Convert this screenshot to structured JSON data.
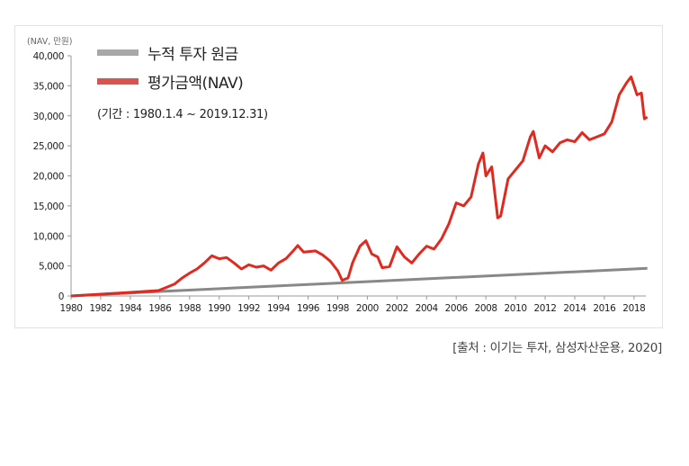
{
  "chart_data": {
    "type": "line",
    "ylabel": "(NAV, 만원)",
    "ylim": [
      0,
      40000
    ],
    "xlim": [
      1980,
      2018.9
    ],
    "yticks": [
      "0",
      "5,000",
      "10,000",
      "15,000",
      "20,000",
      "25,000",
      "30,000",
      "35,000",
      "40,000"
    ],
    "ytick_values": [
      0,
      5000,
      10000,
      15000,
      20000,
      25000,
      30000,
      35000,
      40000
    ],
    "xticks": [
      "1980",
      "1982",
      "1984",
      "1986",
      "1988",
      "1990",
      "1992",
      "1994",
      "1996",
      "1998",
      "2000",
      "2002",
      "2004",
      "2006",
      "2008",
      "2010",
      "2012",
      "2014",
      "2016",
      "2018"
    ],
    "period_note": "(기간 : 1980.1.4 ~ 2019.12.31)",
    "legend_placement": "top-left",
    "grid": false,
    "series": [
      {
        "name": "누적 투자 원금",
        "color": "#999999",
        "x": [
          1980,
          1986,
          2018.9
        ],
        "y": [
          0,
          750,
          4600
        ]
      },
      {
        "name": "평가금액(NAV)",
        "color": "#e02a20",
        "x": [
          1980,
          1982,
          1984,
          1985.9,
          1986.5,
          1987,
          1987.5,
          1988,
          1988.5,
          1989,
          1989.5,
          1990,
          1990.5,
          1991,
          1991.5,
          1992,
          1992.5,
          1993,
          1993.5,
          1994,
          1994.5,
          1995,
          1995.3,
          1995.7,
          1996.5,
          1997,
          1997.5,
          1998,
          1998.3,
          1998.7,
          1999,
          1999.5,
          1999.9,
          2000.3,
          2000.7,
          2001,
          2001.5,
          2002,
          2002.5,
          2003,
          2003.5,
          2004,
          2004.5,
          2005,
          2005.5,
          2006,
          2006.5,
          2007,
          2007.5,
          2007.8,
          2008,
          2008.4,
          2008.8,
          2009,
          2009.5,
          2010,
          2010.5,
          2011,
          2011.2,
          2011.6,
          2012,
          2012.5,
          2013,
          2013.5,
          2014,
          2014.5,
          2015,
          2015.5,
          2016,
          2016.5,
          2017,
          2017.5,
          2017.8,
          2018.2,
          2018.5,
          2018.7,
          2018.9
        ],
        "y": [
          0,
          300,
          600,
          900,
          1500,
          2000,
          3000,
          3800,
          4500,
          5500,
          6700,
          6200,
          6400,
          5500,
          4500,
          5200,
          4800,
          5000,
          4300,
          5500,
          6200,
          7500,
          8400,
          7300,
          7500,
          6800,
          5800,
          4200,
          2600,
          3000,
          5500,
          8300,
          9200,
          7000,
          6500,
          4700,
          4900,
          8200,
          6500,
          5500,
          7000,
          8300,
          7800,
          9500,
          12000,
          15500,
          15000,
          16500,
          22000,
          23800,
          20000,
          21500,
          13000,
          13300,
          19500,
          21000,
          22500,
          26500,
          27400,
          23000,
          25000,
          24000,
          25500,
          26000,
          25700,
          27200,
          26000,
          26500,
          27000,
          29000,
          33500,
          35500,
          36500,
          33500,
          33800,
          29500,
          29800
        ]
      }
    ]
  },
  "source": "[출처 : 이기는 투자, 삼성자산운용, 2020]"
}
